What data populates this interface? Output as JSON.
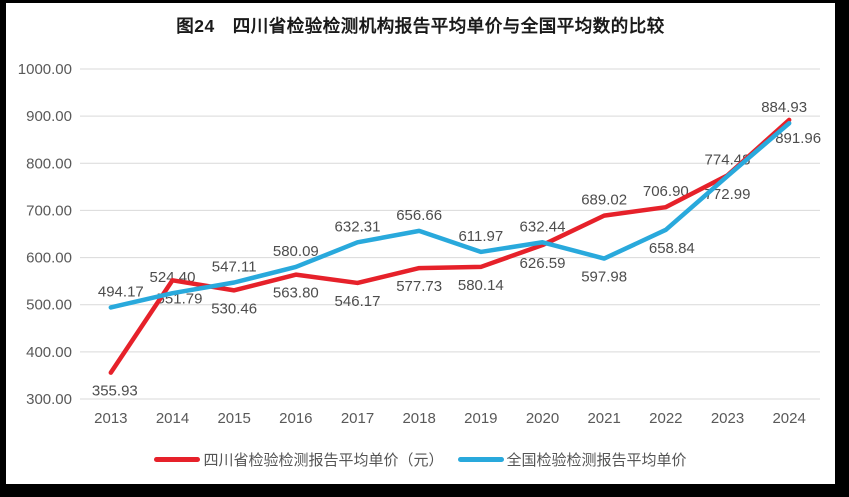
{
  "title": "图24　四川省检验检测机构报告平均单价与全国平均数的比较",
  "chart_data": {
    "type": "line",
    "categories": [
      "2013",
      "2014",
      "2015",
      "2016",
      "2017",
      "2018",
      "2019",
      "2020",
      "2021",
      "2022",
      "2023",
      "2024"
    ],
    "series": [
      {
        "name": "四川省检验检测报告平均单价（元）",
        "color": "#e6212a",
        "values": [
          355.93,
          551.79,
          530.46,
          563.8,
          546.17,
          577.73,
          580.14,
          626.59,
          689.02,
          706.9,
          774.48,
          891.96
        ],
        "label_positions": [
          "below",
          "below",
          "below",
          "below",
          "below",
          "below",
          "below",
          "below",
          "above",
          "above",
          "above",
          "below"
        ]
      },
      {
        "name": "全国检验检测报告平均单价",
        "color": "#29a9dc",
        "values": [
          494.17,
          524.4,
          547.11,
          580.09,
          632.31,
          656.66,
          611.97,
          632.44,
          597.98,
          658.84,
          772.99,
          884.93
        ],
        "label_positions": [
          "above",
          "above",
          "above",
          "above",
          "above",
          "above",
          "above",
          "above",
          "below",
          "below",
          "below",
          "above"
        ]
      }
    ],
    "ylim": [
      300,
      1000
    ],
    "ytick_step": 100,
    "yticks": [
      "300.00",
      "400.00",
      "500.00",
      "600.00",
      "700.00",
      "800.00",
      "900.00",
      "1000.00"
    ],
    "xlabel": "",
    "ylabel": "",
    "grid": "horizontal",
    "legend_position": "bottom",
    "grid_color": "#d9d9d9",
    "axis_text_color": "#595959",
    "data_label_color": "#4d4d4d"
  }
}
